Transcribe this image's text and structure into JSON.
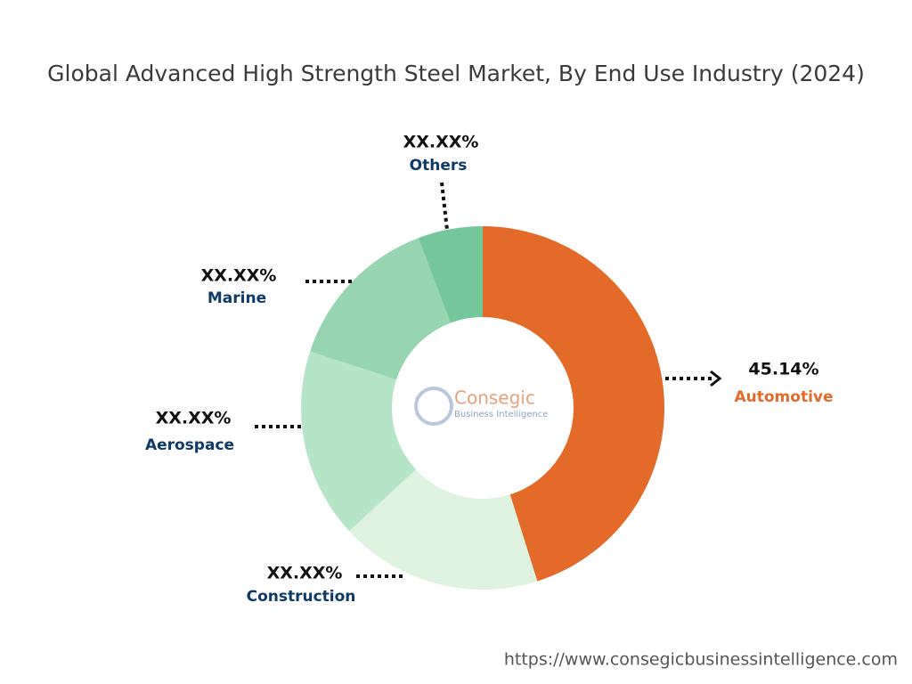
{
  "chart_data": {
    "type": "donut",
    "title": "Global Advanced High Strength Steel Market, By End Use Industry (2024)",
    "categories": [
      "Automotive",
      "Construction",
      "Aerospace",
      "Marine",
      "Others"
    ],
    "values": [
      45.14,
      18.0,
      16.9,
      14.2,
      5.76
    ],
    "value_labels": [
      "45.14%",
      "XX.XX%",
      "XX.XX%",
      "XX.XX%",
      "XX.XX%"
    ],
    "colors": [
      "#e36a28",
      "#ddf2df",
      "#b5e4c6",
      "#96d5b0",
      "#74c69b"
    ]
  },
  "logo": {
    "name": "Consegic",
    "tagline": "Business Intelligence"
  },
  "footer": {
    "url": "https://www.consegicbusinessintelligence.com"
  }
}
